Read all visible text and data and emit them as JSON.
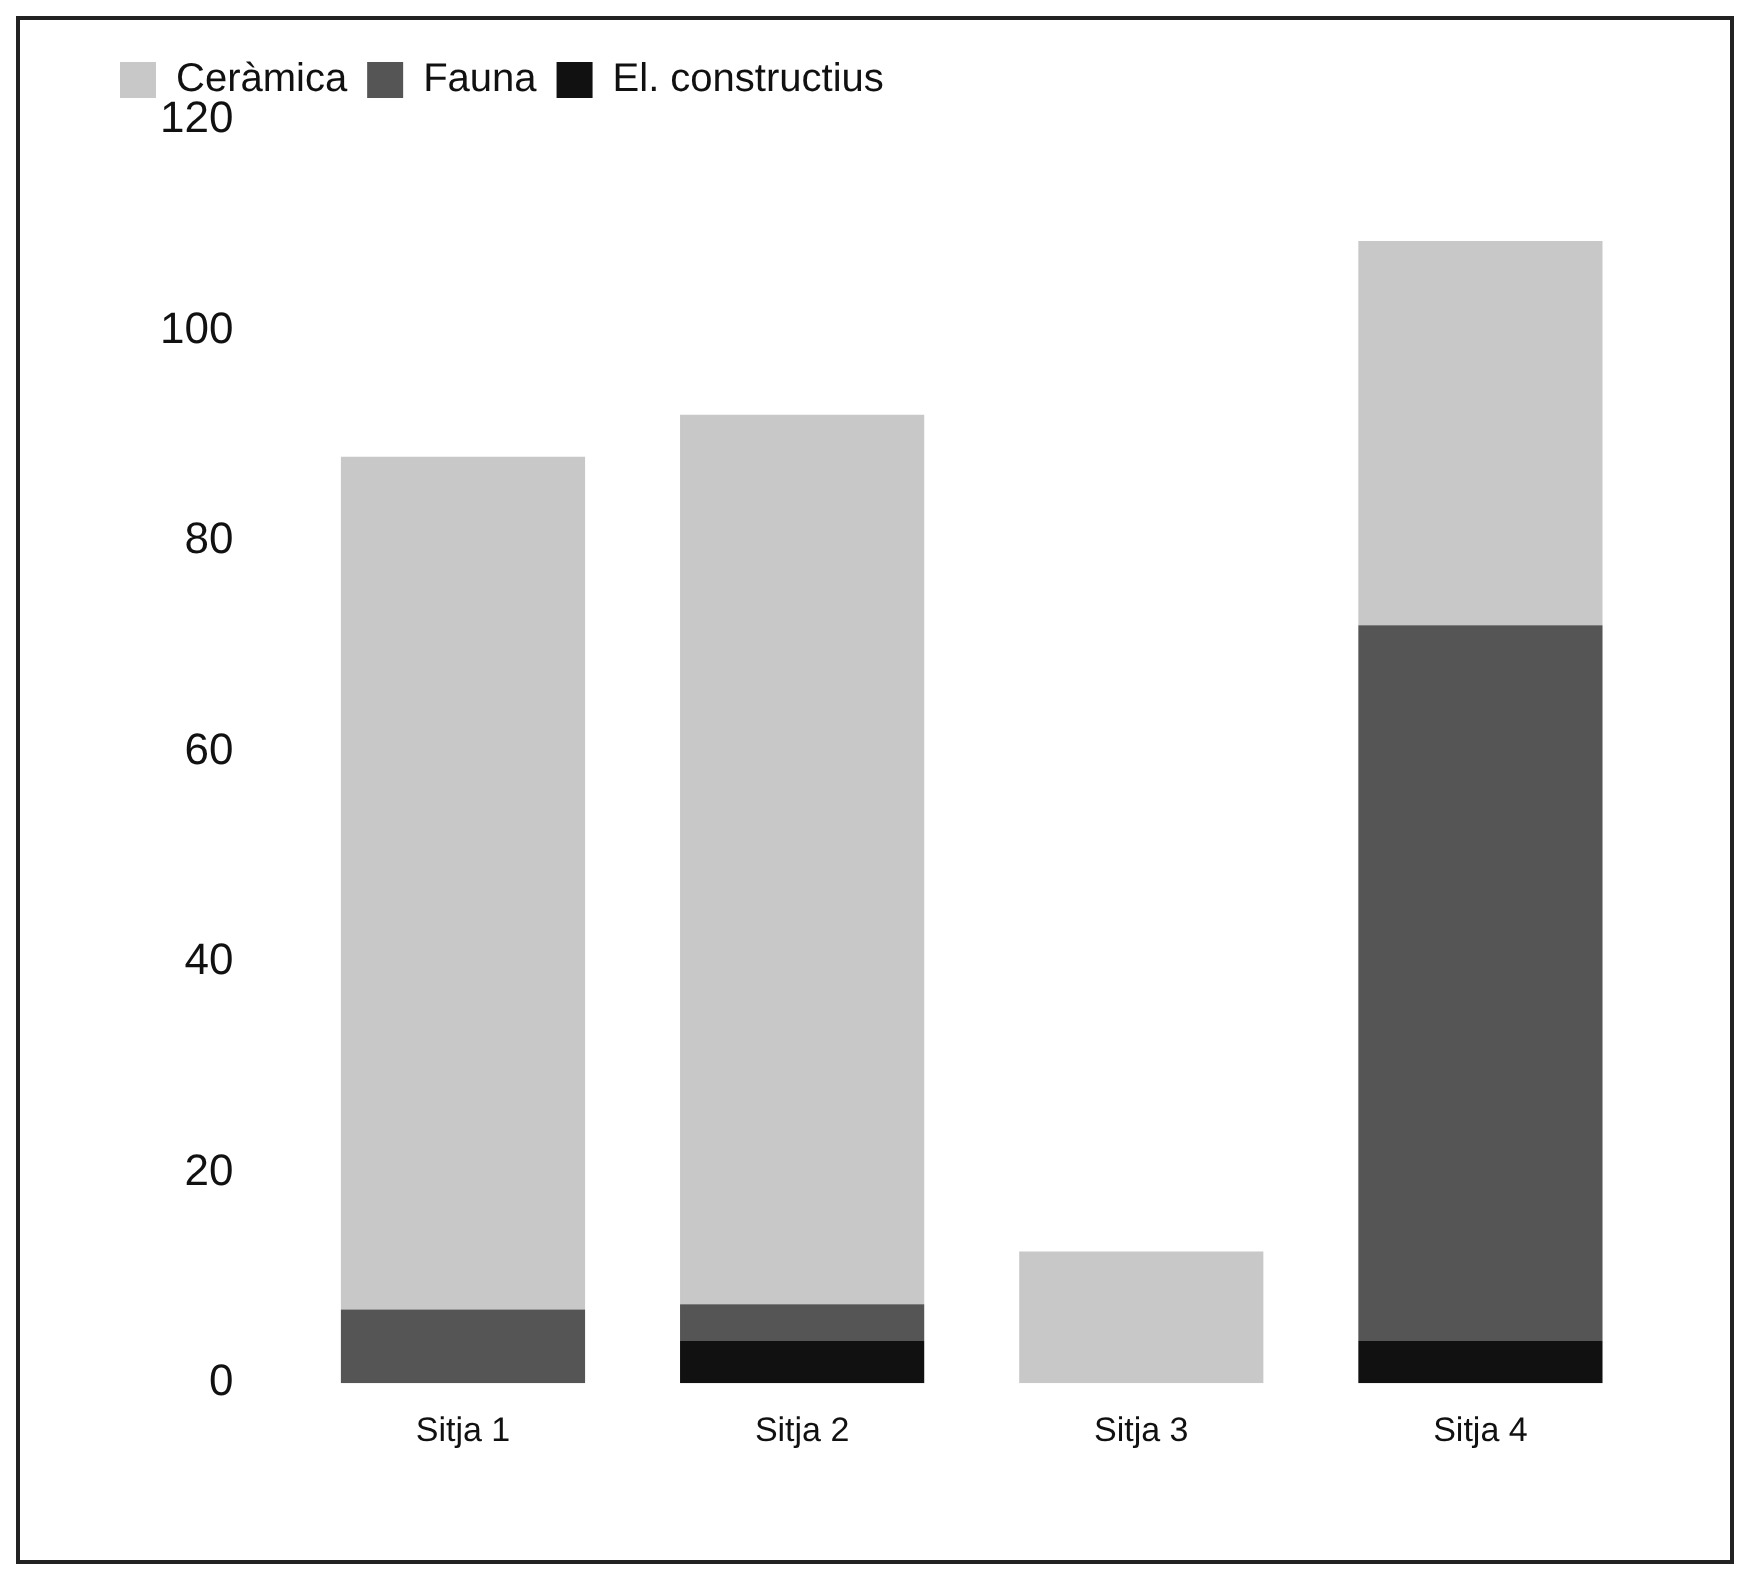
{
  "chart_data": {
    "type": "bar",
    "stacked": true,
    "categories": [
      "Sitja 1",
      "Sitja 2",
      "Sitja 3",
      "Sitja 4"
    ],
    "series": [
      {
        "name": "El. constructius",
        "color": "#111111",
        "values": [
          0,
          4,
          0,
          4
        ]
      },
      {
        "name": "Fauna",
        "color": "#555555",
        "values": [
          7,
          3.5,
          0,
          68
        ]
      },
      {
        "name": "Ceràmica",
        "color": "#c8c8c8",
        "values": [
          81,
          84.5,
          12.5,
          36.5
        ]
      }
    ],
    "ylim": [
      0,
      120
    ],
    "yticks": [
      0,
      20,
      40,
      60,
      80,
      100,
      120
    ],
    "grid": false,
    "legend": "top left"
  }
}
